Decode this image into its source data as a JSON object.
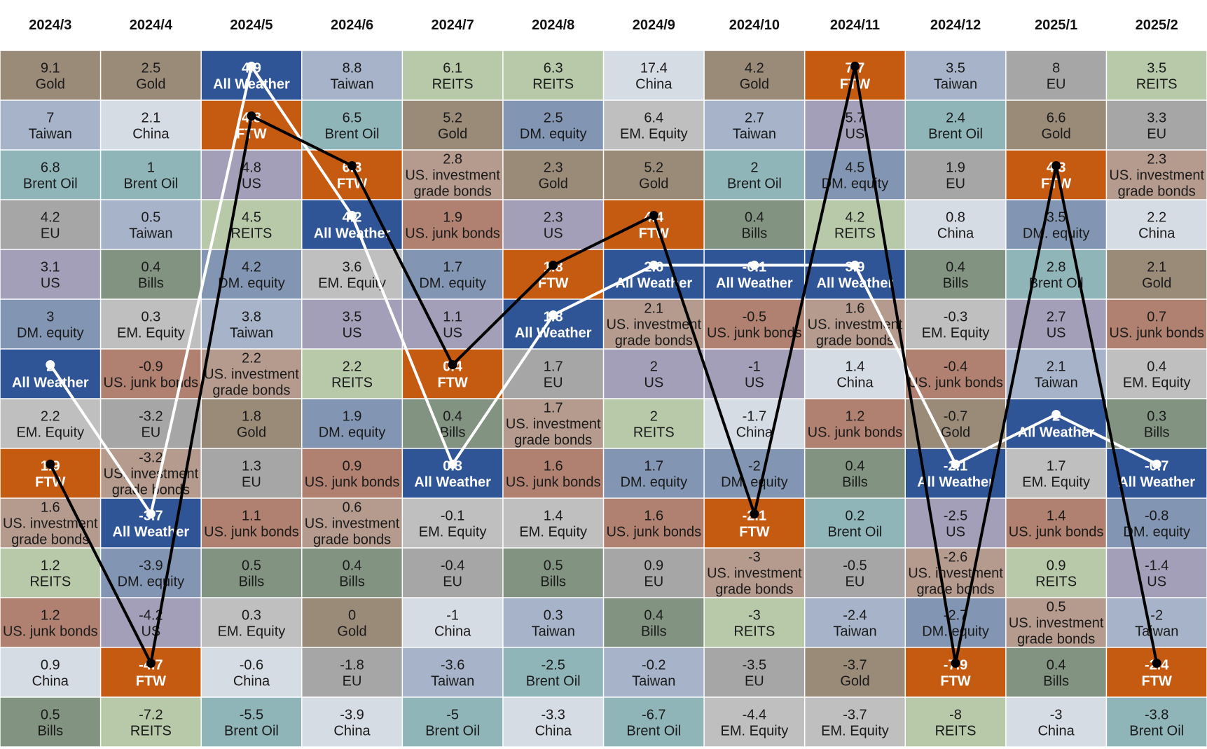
{
  "colors": {
    "Gold": "#9a8b79",
    "Taiwan": "#a6b3c8",
    "Brent Oil": "#8fb5b9",
    "EU": "#a6a6a6",
    "US": "#a39fb8",
    "DM. equity": "#8296b3",
    "All Weather": "#2f5597",
    "EM. Equity": "#bfbfbf",
    "FTW": "#c55a11",
    "US. investment grade bonds": "#b59b8d",
    "REITS": "#b8c9a9",
    "US. junk bonds": "#b08170",
    "China": "#d6dce4",
    "Bills": "#829382",
    "ftw_line": "#000000",
    "all_weather_line": "#ffffff"
  },
  "chart_data": {
    "type": "table",
    "title": "",
    "months": [
      "2024/3",
      "2024/4",
      "2024/5",
      "2024/6",
      "2024/7",
      "2024/8",
      "2024/9",
      "2024/10",
      "2024/11",
      "2024/12",
      "2025/1",
      "2025/2"
    ],
    "columns": [
      [
        {
          "value": "9.1",
          "asset": "Gold"
        },
        {
          "value": "7",
          "asset": "Taiwan"
        },
        {
          "value": "6.8",
          "asset": "Brent Oil"
        },
        {
          "value": "4.2",
          "asset": "EU"
        },
        {
          "value": "3.1",
          "asset": "US"
        },
        {
          "value": "3",
          "asset": "DM. equity"
        },
        {
          "value": "2",
          "asset": "All Weather"
        },
        {
          "value": "2.2",
          "asset": "EM. Equity"
        },
        {
          "value": "1.9",
          "asset": "FTW"
        },
        {
          "value": "1.6",
          "asset": "US. investment grade bonds"
        },
        {
          "value": "1.2",
          "asset": "REITS"
        },
        {
          "value": "1.2",
          "asset": "US. junk bonds"
        },
        {
          "value": "0.9",
          "asset": "China"
        },
        {
          "value": "0.5",
          "asset": "Bills"
        }
      ],
      [
        {
          "value": "2.5",
          "asset": "Gold"
        },
        {
          "value": "2.1",
          "asset": "China"
        },
        {
          "value": "1",
          "asset": "Brent Oil"
        },
        {
          "value": "0.5",
          "asset": "Taiwan"
        },
        {
          "value": "0.4",
          "asset": "Bills"
        },
        {
          "value": "0.3",
          "asset": "EM. Equity"
        },
        {
          "value": "-0.9",
          "asset": "US. junk bonds"
        },
        {
          "value": "-3.2",
          "asset": "EU"
        },
        {
          "value": "-3.2",
          "asset": "US. investment grade bonds"
        },
        {
          "value": "-3.7",
          "asset": "All Weather"
        },
        {
          "value": "-3.9",
          "asset": "DM. equity"
        },
        {
          "value": "-4.2",
          "asset": "US"
        },
        {
          "value": "-4.7",
          "asset": "FTW"
        },
        {
          "value": "-7.2",
          "asset": "REITS"
        }
      ],
      [
        {
          "value": "4.9",
          "asset": "All Weather"
        },
        {
          "value": "4.8",
          "asset": "FTW"
        },
        {
          "value": "4.8",
          "asset": "US"
        },
        {
          "value": "4.5",
          "asset": "REITS"
        },
        {
          "value": "4.2",
          "asset": "DM. equity"
        },
        {
          "value": "3.8",
          "asset": "Taiwan"
        },
        {
          "value": "2.2",
          "asset": "US. investment grade bonds"
        },
        {
          "value": "1.8",
          "asset": "Gold"
        },
        {
          "value": "1.3",
          "asset": "EU"
        },
        {
          "value": "1.1",
          "asset": "US. junk bonds"
        },
        {
          "value": "0.5",
          "asset": "Bills"
        },
        {
          "value": "0.3",
          "asset": "EM. Equity"
        },
        {
          "value": "-0.6",
          "asset": "China"
        },
        {
          "value": "-5.5",
          "asset": "Brent Oil"
        }
      ],
      [
        {
          "value": "8.8",
          "asset": "Taiwan"
        },
        {
          "value": "6.5",
          "asset": "Brent Oil"
        },
        {
          "value": "6.3",
          "asset": "FTW"
        },
        {
          "value": "4.2",
          "asset": "All Weather"
        },
        {
          "value": "3.6",
          "asset": "EM. Equity"
        },
        {
          "value": "3.5",
          "asset": "US"
        },
        {
          "value": "2.2",
          "asset": "REITS"
        },
        {
          "value": "1.9",
          "asset": "DM. equity"
        },
        {
          "value": "0.9",
          "asset": "US. junk bonds"
        },
        {
          "value": "0.6",
          "asset": "US. investment grade bonds"
        },
        {
          "value": "0.4",
          "asset": "Bills"
        },
        {
          "value": "0",
          "asset": "Gold"
        },
        {
          "value": "-1.8",
          "asset": "EU"
        },
        {
          "value": "-3.9",
          "asset": "China"
        }
      ],
      [
        {
          "value": "6.1",
          "asset": "REITS"
        },
        {
          "value": "5.2",
          "asset": "Gold"
        },
        {
          "value": "2.8",
          "asset": "US. investment grade bonds"
        },
        {
          "value": "1.9",
          "asset": "US. junk bonds"
        },
        {
          "value": "1.7",
          "asset": "DM. equity"
        },
        {
          "value": "1.1",
          "asset": "US"
        },
        {
          "value": "0.4",
          "asset": "FTW"
        },
        {
          "value": "0.4",
          "asset": "Bills"
        },
        {
          "value": "0.3",
          "asset": "All Weather"
        },
        {
          "value": "-0.1",
          "asset": "EM. Equity"
        },
        {
          "value": "-0.4",
          "asset": "EU"
        },
        {
          "value": "-1",
          "asset": "China"
        },
        {
          "value": "-3.6",
          "asset": "Taiwan"
        },
        {
          "value": "-5",
          "asset": "Brent Oil"
        }
      ],
      [
        {
          "value": "6.3",
          "asset": "REITS"
        },
        {
          "value": "2.5",
          "asset": "DM. equity"
        },
        {
          "value": "2.3",
          "asset": "Gold"
        },
        {
          "value": "2.3",
          "asset": "US"
        },
        {
          "value": "1.8",
          "asset": "FTW"
        },
        {
          "value": "1.8",
          "asset": "All Weather"
        },
        {
          "value": "1.7",
          "asset": "EU"
        },
        {
          "value": "1.7",
          "asset": "US. investment grade bonds"
        },
        {
          "value": "1.6",
          "asset": "US. junk bonds"
        },
        {
          "value": "1.4",
          "asset": "EM. Equity"
        },
        {
          "value": "0.5",
          "asset": "Bills"
        },
        {
          "value": "0.3",
          "asset": "Taiwan"
        },
        {
          "value": "-2.5",
          "asset": "Brent Oil"
        },
        {
          "value": "-3.3",
          "asset": "China"
        }
      ],
      [
        {
          "value": "17.4",
          "asset": "China"
        },
        {
          "value": "6.4",
          "asset": "EM. Equity"
        },
        {
          "value": "5.2",
          "asset": "Gold"
        },
        {
          "value": "4.4",
          "asset": "FTW"
        },
        {
          "value": "2.6",
          "asset": "All Weather"
        },
        {
          "value": "2.1",
          "asset": "US. investment grade bonds"
        },
        {
          "value": "2",
          "asset": "US"
        },
        {
          "value": "2",
          "asset": "REITS"
        },
        {
          "value": "1.7",
          "asset": "DM. equity"
        },
        {
          "value": "1.6",
          "asset": "US. junk bonds"
        },
        {
          "value": "0.9",
          "asset": "EU"
        },
        {
          "value": "0.4",
          "asset": "Bills"
        },
        {
          "value": "-0.2",
          "asset": "Taiwan"
        },
        {
          "value": "-6.7",
          "asset": "Brent Oil"
        }
      ],
      [
        {
          "value": "4.2",
          "asset": "Gold"
        },
        {
          "value": "2.7",
          "asset": "Taiwan"
        },
        {
          "value": "2",
          "asset": "Brent Oil"
        },
        {
          "value": "0.4",
          "asset": "Bills"
        },
        {
          "value": "-0.1",
          "asset": "All Weather"
        },
        {
          "value": "-0.5",
          "asset": "US. junk bonds"
        },
        {
          "value": "-1",
          "asset": "US"
        },
        {
          "value": "-1.7",
          "asset": "China"
        },
        {
          "value": "-2",
          "asset": "DM. equity"
        },
        {
          "value": "-2.1",
          "asset": "FTW"
        },
        {
          "value": "-3",
          "asset": "US. investment grade bonds"
        },
        {
          "value": "-3",
          "asset": "REITS"
        },
        {
          "value": "-3.5",
          "asset": "EU"
        },
        {
          "value": "-4.4",
          "asset": "EM. Equity"
        }
      ],
      [
        {
          "value": "7.7",
          "asset": "FTW"
        },
        {
          "value": "5.7",
          "asset": "US"
        },
        {
          "value": "4.5",
          "asset": "DM. equity"
        },
        {
          "value": "4.2",
          "asset": "REITS"
        },
        {
          "value": "3.9",
          "asset": "All Weather"
        },
        {
          "value": "1.6",
          "asset": "US. investment grade bonds"
        },
        {
          "value": "1.4",
          "asset": "China"
        },
        {
          "value": "1.2",
          "asset": "US. junk bonds"
        },
        {
          "value": "0.4",
          "asset": "Bills"
        },
        {
          "value": "0.2",
          "asset": "Brent Oil"
        },
        {
          "value": "-0.5",
          "asset": "EU"
        },
        {
          "value": "-2.4",
          "asset": "Taiwan"
        },
        {
          "value": "-3.7",
          "asset": "Gold"
        },
        {
          "value": "-3.7",
          "asset": "EM. Equity"
        }
      ],
      [
        {
          "value": "3.5",
          "asset": "Taiwan"
        },
        {
          "value": "2.4",
          "asset": "Brent Oil"
        },
        {
          "value": "1.9",
          "asset": "EU"
        },
        {
          "value": "0.8",
          "asset": "China"
        },
        {
          "value": "0.4",
          "asset": "Bills"
        },
        {
          "value": "-0.3",
          "asset": "EM. Equity"
        },
        {
          "value": "-0.4",
          "asset": "US. junk bonds"
        },
        {
          "value": "-0.7",
          "asset": "Gold"
        },
        {
          "value": "-2.1",
          "asset": "All Weather"
        },
        {
          "value": "-2.5",
          "asset": "US"
        },
        {
          "value": "-2.6",
          "asset": "US. investment grade bonds"
        },
        {
          "value": "-2.7",
          "asset": "DM. equity"
        },
        {
          "value": "-7.9",
          "asset": "FTW"
        },
        {
          "value": "-8",
          "asset": "REITS"
        }
      ],
      [
        {
          "value": "8",
          "asset": "EU"
        },
        {
          "value": "6.6",
          "asset": "Gold"
        },
        {
          "value": "4.3",
          "asset": "FTW"
        },
        {
          "value": "3.5",
          "asset": "DM. equity"
        },
        {
          "value": "2.8",
          "asset": "Brent Oil"
        },
        {
          "value": "2.7",
          "asset": "US"
        },
        {
          "value": "2.1",
          "asset": "Taiwan"
        },
        {
          "value": "2",
          "asset": "All Weather"
        },
        {
          "value": "1.7",
          "asset": "EM. Equity"
        },
        {
          "value": "1.4",
          "asset": "US. junk bonds"
        },
        {
          "value": "0.9",
          "asset": "REITS"
        },
        {
          "value": "0.5",
          "asset": "US. investment grade bonds"
        },
        {
          "value": "0.4",
          "asset": "Bills"
        },
        {
          "value": "-3",
          "asset": "China"
        }
      ],
      [
        {
          "value": "3.5",
          "asset": "REITS"
        },
        {
          "value": "3.3",
          "asset": "EU"
        },
        {
          "value": "2.3",
          "asset": "US. investment grade bonds"
        },
        {
          "value": "2.2",
          "asset": "China"
        },
        {
          "value": "2.1",
          "asset": "Gold"
        },
        {
          "value": "0.7",
          "asset": "US. junk bonds"
        },
        {
          "value": "0.4",
          "asset": "EM. Equity"
        },
        {
          "value": "0.3",
          "asset": "Bills"
        },
        {
          "value": "-0.7",
          "asset": "All Weather"
        },
        {
          "value": "-0.8",
          "asset": "DM. equity"
        },
        {
          "value": "-1.4",
          "asset": "US"
        },
        {
          "value": "-2",
          "asset": "Taiwan"
        },
        {
          "value": "-2.4",
          "asset": "FTW"
        },
        {
          "value": "-3.8",
          "asset": "Brent Oil"
        }
      ]
    ],
    "wrapped_labels": {
      "US. investment grade bonds": [
        "US. investment",
        "grade bonds"
      ]
    },
    "highlight_assets": [
      "All Weather",
      "FTW"
    ],
    "lines": [
      {
        "asset": "All Weather",
        "color_key": "all_weather_line"
      },
      {
        "asset": "FTW",
        "color_key": "ftw_line"
      }
    ]
  }
}
